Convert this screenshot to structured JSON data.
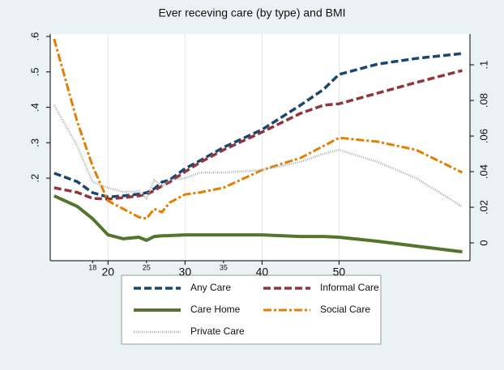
{
  "chart_data": {
    "type": "line",
    "title": "Ever receving care (by type) and BMI",
    "x": [
      13,
      16,
      18,
      20,
      22,
      24,
      25,
      26,
      27,
      28,
      30,
      32,
      35,
      40,
      45,
      48,
      50,
      55,
      60,
      66
    ],
    "series": [
      {
        "name": "Any Care",
        "color": "#1a476f",
        "style": "dash",
        "values": [
          0.214,
          0.19,
          0.159,
          0.147,
          0.15,
          0.155,
          0.159,
          0.17,
          0.189,
          0.195,
          0.227,
          0.25,
          0.287,
          0.337,
          0.406,
          0.451,
          0.493,
          0.522,
          0.538,
          0.552
        ]
      },
      {
        "name": "Informal Care",
        "color": "#90353b",
        "style": "dash",
        "values": [
          0.173,
          0.16,
          0.143,
          0.141,
          0.145,
          0.15,
          0.154,
          0.165,
          0.178,
          0.189,
          0.218,
          0.245,
          0.28,
          0.33,
          0.383,
          0.406,
          0.41,
          0.44,
          0.47,
          0.504
        ]
      },
      {
        "name": "Care Home",
        "color": "#55752f",
        "style": "solid",
        "axis": "y2",
        "values": [
          0.0264,
          0.0205,
          0.0136,
          0.0045,
          0.0023,
          0.0032,
          0.0014,
          0.0036,
          0.004,
          0.0041,
          0.0045,
          0.0045,
          0.0045,
          0.0045,
          0.0036,
          0.0036,
          0.0032,
          0.0009,
          -0.0018,
          -0.005
        ]
      },
      {
        "name": "Social Care",
        "color": "#e37e00",
        "style": "dashdot",
        "values": [
          0.593,
          0.36,
          0.234,
          0.136,
          0.113,
          0.09,
          0.086,
          0.113,
          0.104,
          0.131,
          0.154,
          0.16,
          0.173,
          0.223,
          0.257,
          0.291,
          0.314,
          0.303,
          0.28,
          0.216
        ]
      },
      {
        "name": "Private Care",
        "color": "#a8b0b0",
        "style": "dot",
        "values": [
          0.406,
          0.291,
          0.189,
          0.173,
          0.161,
          0.163,
          0.143,
          0.195,
          0.177,
          0.195,
          0.2,
          0.216,
          0.216,
          0.223,
          0.246,
          0.269,
          0.28,
          0.246,
          0.2,
          0.12
        ]
      }
    ],
    "xlim": [
      12.5,
      67
    ],
    "xticks": [
      20,
      30,
      40,
      50
    ],
    "xticks_minor": [
      18,
      25,
      35
    ],
    "ylim": [
      -0.033,
      0.607
    ],
    "yticks": [
      {
        "value": 0.2,
        "label": ".2"
      },
      {
        "value": 0.3,
        "label": ".3"
      },
      {
        "value": 0.4,
        "label": ".4"
      },
      {
        "value": 0.5,
        "label": ".5"
      },
      {
        "value": 0.6,
        "label": ".6"
      }
    ],
    "y2lim": [
      -0.01,
      0.1173
    ],
    "y2ticks": [
      0,
      {
        "value": 0.02,
        "label": ".02"
      },
      {
        "value": 0.04,
        "label": ".04"
      },
      {
        "value": 0.06,
        "label": ".06"
      },
      {
        "value": 0.08,
        "label": ".08"
      },
      {
        "value": 0.1,
        "label": ".1"
      }
    ],
    "grid": true,
    "legend": "bottom"
  }
}
